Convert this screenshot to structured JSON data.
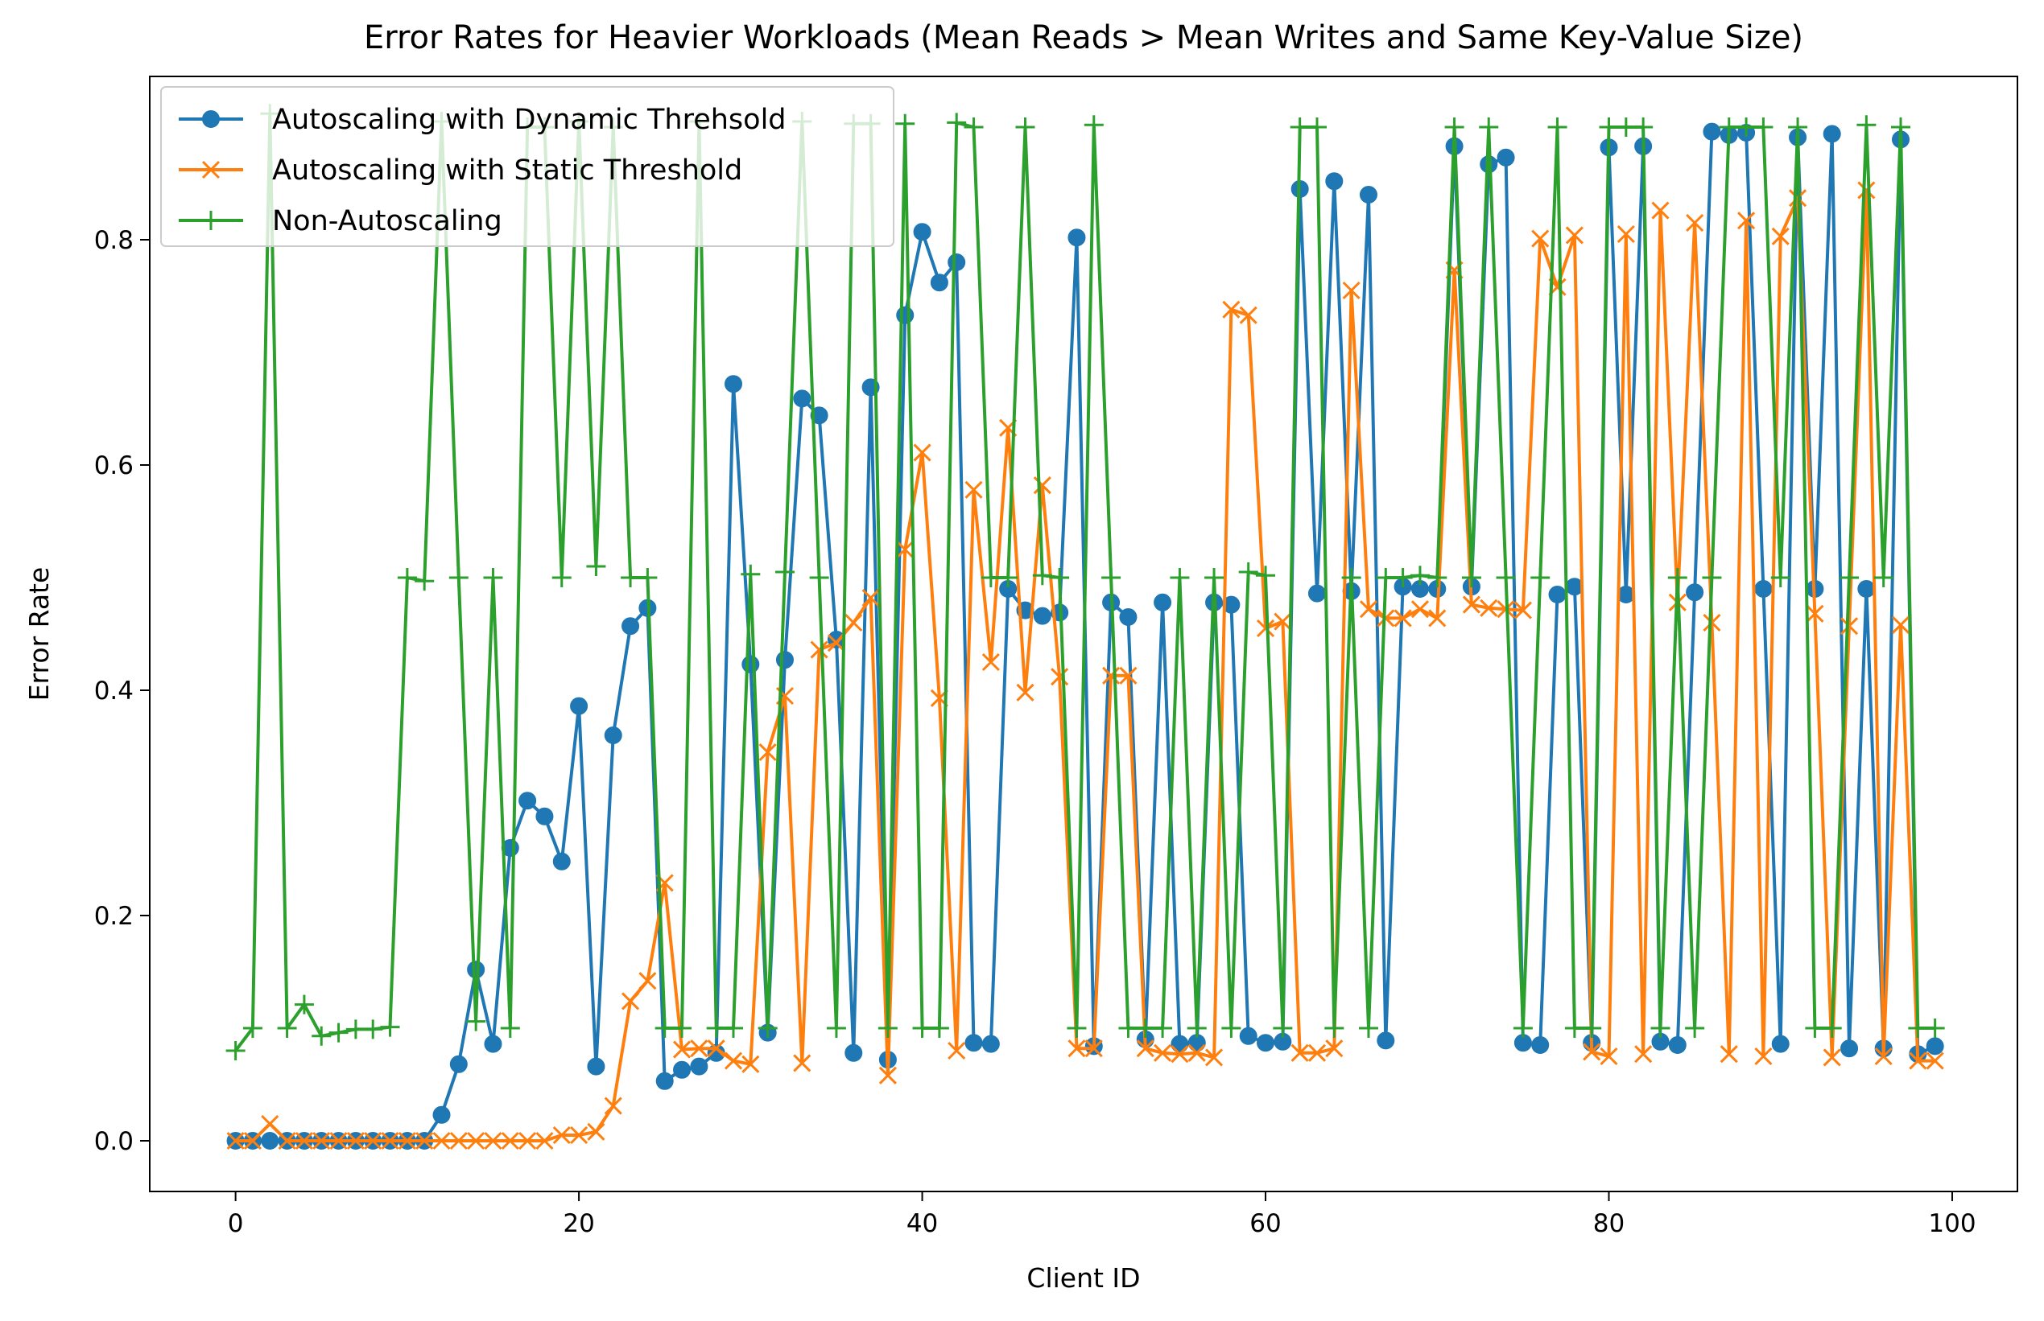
{
  "chart_data": {
    "type": "line",
    "title": "Error Rates for Heavier Workloads (Mean Reads > Mean Writes and Same Key-Value Size)",
    "xlabel": "Client ID",
    "ylabel": "Error Rate",
    "xlim": [
      -5,
      103.8
    ],
    "ylim": [
      -0.045,
      0.945
    ],
    "xticks": [
      0,
      20,
      40,
      60,
      80,
      100
    ],
    "yticks": [
      0.0,
      0.2,
      0.4,
      0.6,
      0.8
    ],
    "xtick_labels": [
      "0",
      "20",
      "40",
      "60",
      "80",
      "100"
    ],
    "ytick_labels": [
      "0.0",
      "0.2",
      "0.4",
      "0.6",
      "0.8"
    ],
    "grid": false,
    "legend_position": "upper-left",
    "x": [
      0,
      1,
      2,
      3,
      4,
      5,
      6,
      7,
      8,
      9,
      10,
      11,
      12,
      13,
      14,
      15,
      16,
      17,
      18,
      19,
      20,
      21,
      22,
      23,
      24,
      25,
      26,
      27,
      28,
      29,
      30,
      31,
      32,
      33,
      34,
      35,
      36,
      37,
      38,
      39,
      40,
      41,
      42,
      43,
      44,
      45,
      46,
      47,
      48,
      49,
      50,
      51,
      52,
      53,
      54,
      55,
      56,
      57,
      58,
      59,
      60,
      61,
      62,
      63,
      64,
      65,
      66,
      67,
      68,
      69,
      70,
      71,
      72,
      73,
      74,
      75,
      76,
      77,
      78,
      79,
      80,
      81,
      82,
      83,
      84,
      85,
      86,
      87,
      88,
      89,
      90,
      91,
      92,
      93,
      94,
      95,
      96,
      97,
      98,
      99
    ],
    "series": [
      {
        "name": "Autoscaling with Dynamic Threhsold",
        "color": "#1f77b4",
        "marker": "circle",
        "values": [
          0,
          0,
          0,
          0,
          0,
          0,
          0,
          0,
          0,
          0,
          0,
          0,
          0.023,
          0.068,
          0.152,
          0.086,
          0.26,
          0.302,
          0.288,
          0.248,
          0.386,
          0.066,
          0.36,
          0.457,
          0.473,
          0.053,
          0.063,
          0.066,
          0.078,
          0.672,
          0.423,
          0.096,
          0.427,
          0.659,
          0.644,
          0.445,
          0.078,
          0.669,
          0.072,
          0.733,
          0.807,
          0.762,
          0.78,
          0.087,
          0.086,
          0.49,
          0.471,
          0.466,
          0.469,
          0.802,
          0.084,
          0.478,
          0.465,
          0.09,
          0.478,
          0.086,
          0.087,
          0.478,
          0.476,
          0.093,
          0.087,
          0.088,
          0.845,
          0.486,
          0.852,
          0.488,
          0.84,
          0.089,
          0.492,
          0.49,
          0.49,
          0.883,
          0.492,
          0.867,
          0.873,
          0.087,
          0.085,
          0.485,
          0.492,
          0.087,
          0.882,
          0.485,
          0.883,
          0.088,
          0.085,
          0.487,
          0.896,
          0.893,
          0.895,
          0.49,
          0.086,
          0.891,
          0.49,
          0.894,
          0.082,
          0.49,
          0.082,
          0.889,
          0.077,
          0.084
        ]
      },
      {
        "name": "Autoscaling with Static Threshold",
        "color": "#ff7f0e",
        "marker": "x",
        "values": [
          0,
          0,
          0.015,
          0,
          0,
          0,
          0,
          0,
          0,
          0,
          0,
          0,
          0,
          0,
          0,
          0,
          0,
          0,
          0,
          0.005,
          0.005,
          0.008,
          0.031,
          0.124,
          0.142,
          0.229,
          0.081,
          0.082,
          0.082,
          0.071,
          0.068,
          0.345,
          0.395,
          0.069,
          0.436,
          0.442,
          0.46,
          0.482,
          0.058,
          0.525,
          0.611,
          0.393,
          0.08,
          0.578,
          0.425,
          0.633,
          0.398,
          0.582,
          0.412,
          0.082,
          0.082,
          0.413,
          0.413,
          0.082,
          0.078,
          0.077,
          0.078,
          0.074,
          0.738,
          0.733,
          0.455,
          0.461,
          0.078,
          0.078,
          0.082,
          0.755,
          0.472,
          0.464,
          0.464,
          0.472,
          0.464,
          0.773,
          0.476,
          0.473,
          0.472,
          0.471,
          0.801,
          0.758,
          0.804,
          0.079,
          0.075,
          0.805,
          0.077,
          0.826,
          0.478,
          0.815,
          0.46,
          0.077,
          0.817,
          0.075,
          0.803,
          0.837,
          0.468,
          0.074,
          0.457,
          0.844,
          0.075,
          0.458,
          0.071,
          0.071
        ]
      },
      {
        "name": "Non-Autoscaling",
        "color": "#2ca02c",
        "marker": "plus",
        "values": [
          0.08,
          0.1,
          0.912,
          0.1,
          0.121,
          0.093,
          0.096,
          0.099,
          0.099,
          0.101,
          0.5,
          0.497,
          0.905,
          0.5,
          0.106,
          0.5,
          0.1,
          0.9,
          0.9,
          0.5,
          0.905,
          0.51,
          0.9,
          0.5,
          0.5,
          0.1,
          0.1,
          0.905,
          0.1,
          0.1,
          0.503,
          0.1,
          0.505,
          0.905,
          0.5,
          0.1,
          0.903,
          0.903,
          0.1,
          0.903,
          0.1,
          0.1,
          0.904,
          0.9,
          0.5,
          0.5,
          0.9,
          0.502,
          0.5,
          0.1,
          0.902,
          0.5,
          0.1,
          0.1,
          0.1,
          0.5,
          0.1,
          0.5,
          0.1,
          0.505,
          0.502,
          0.1,
          0.9,
          0.9,
          0.1,
          0.5,
          0.1,
          0.5,
          0.5,
          0.502,
          0.5,
          0.9,
          0.5,
          0.9,
          0.5,
          0.1,
          0.5,
          0.9,
          0.1,
          0.1,
          0.9,
          0.9,
          0.9,
          0.1,
          0.5,
          0.1,
          0.5,
          0.9,
          0.9,
          0.9,
          0.5,
          0.9,
          0.1,
          0.1,
          0.5,
          0.902,
          0.5,
          0.9,
          0.1,
          0.1
        ]
      }
    ]
  }
}
